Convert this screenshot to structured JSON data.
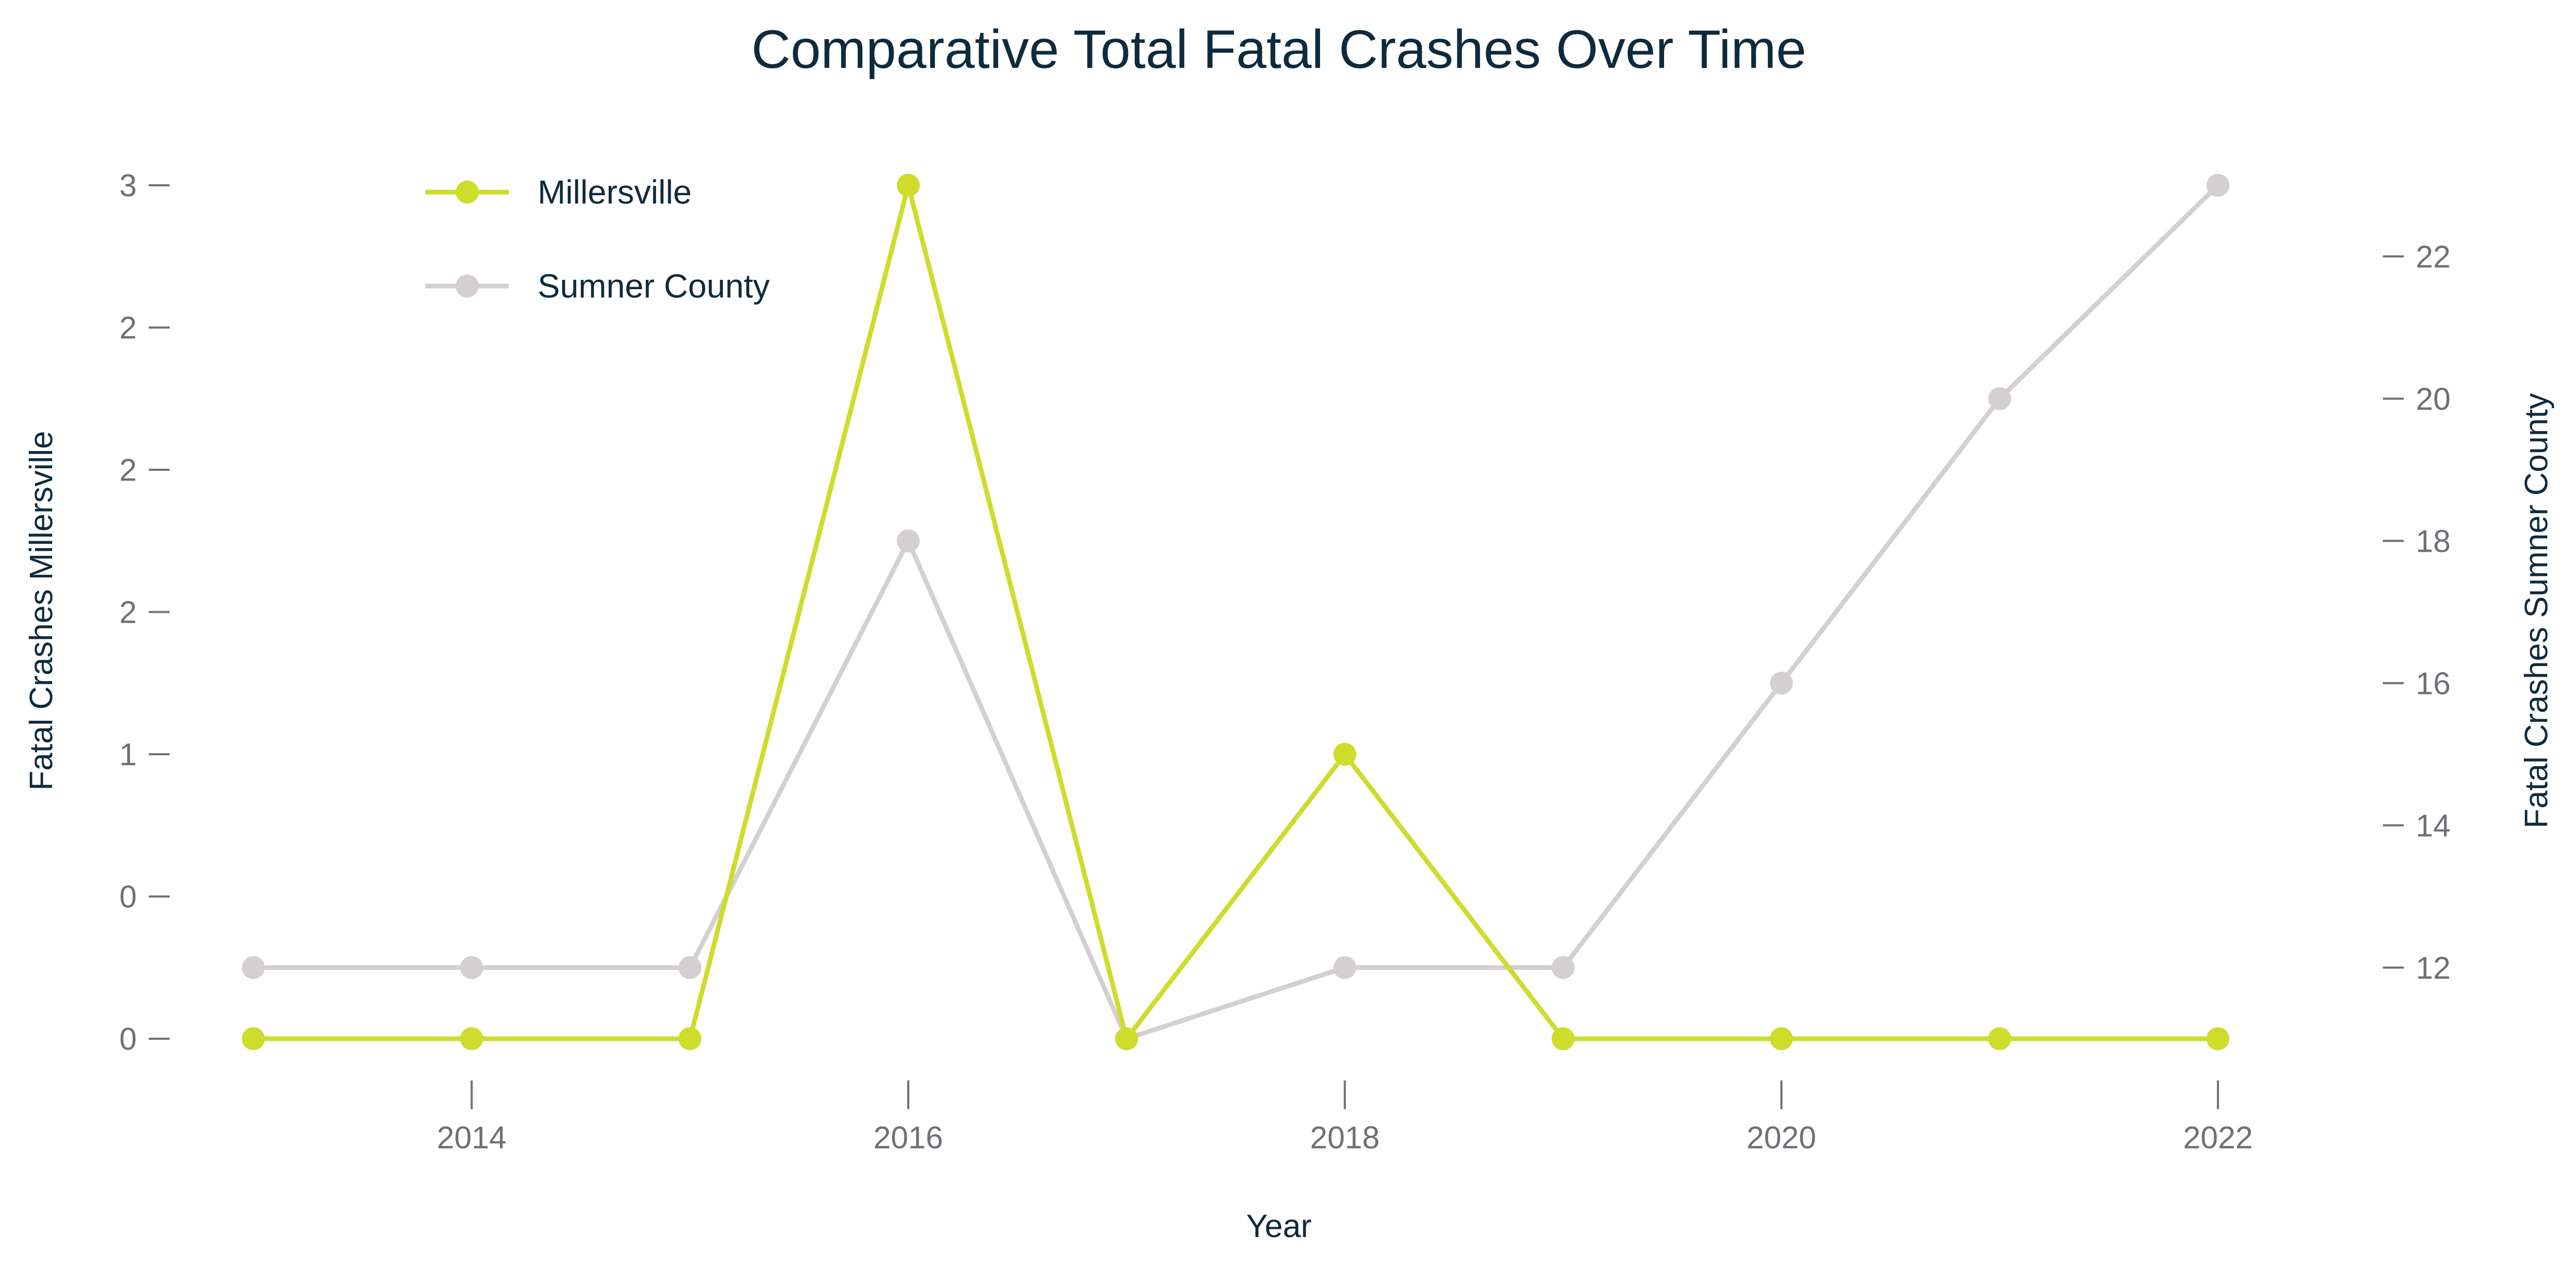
{
  "chart_data": {
    "type": "line",
    "title": "Comparative Total Fatal Crashes Over Time",
    "xlabel": "Year",
    "ylabel_left": "Fatal Crashes Millersville",
    "ylabel_right": "Fatal Crashes Sumner County",
    "x": [
      2013,
      2014,
      2015,
      2016,
      2017,
      2018,
      2019,
      2020,
      2021,
      2022
    ],
    "x_ticks": [
      2014,
      2016,
      2018,
      2020,
      2022
    ],
    "x_tick_labels": [
      "2014",
      "2016",
      "2018",
      "2020",
      "2022"
    ],
    "xlim": [
      2012.7,
      2022.6
    ],
    "y_left_ticks": [
      0,
      0.5,
      1,
      1.5,
      2,
      2.5,
      3
    ],
    "y_left_tick_labels": [
      "0",
      "0",
      "1",
      "2",
      "2",
      "2",
      "3"
    ],
    "ylim_left": [
      0,
      3
    ],
    "y_right_ticks": [
      12,
      14,
      16,
      18,
      20,
      22
    ],
    "y_right_tick_labels": [
      "12",
      "14",
      "16",
      "18",
      "20",
      "22"
    ],
    "ylim_right": [
      11,
      23
    ],
    "grid": false,
    "legend_position": "top-left",
    "series": [
      {
        "name": "Millersville",
        "axis": "left",
        "color": "#cedc2b",
        "values": [
          0,
          0,
          0,
          3,
          0,
          1,
          0,
          0,
          0,
          0
        ]
      },
      {
        "name": "Sumner County",
        "axis": "right",
        "color": "#d4cfd0",
        "values": [
          12,
          12,
          12,
          18,
          11,
          12,
          12,
          16,
          20,
          23
        ]
      }
    ]
  }
}
